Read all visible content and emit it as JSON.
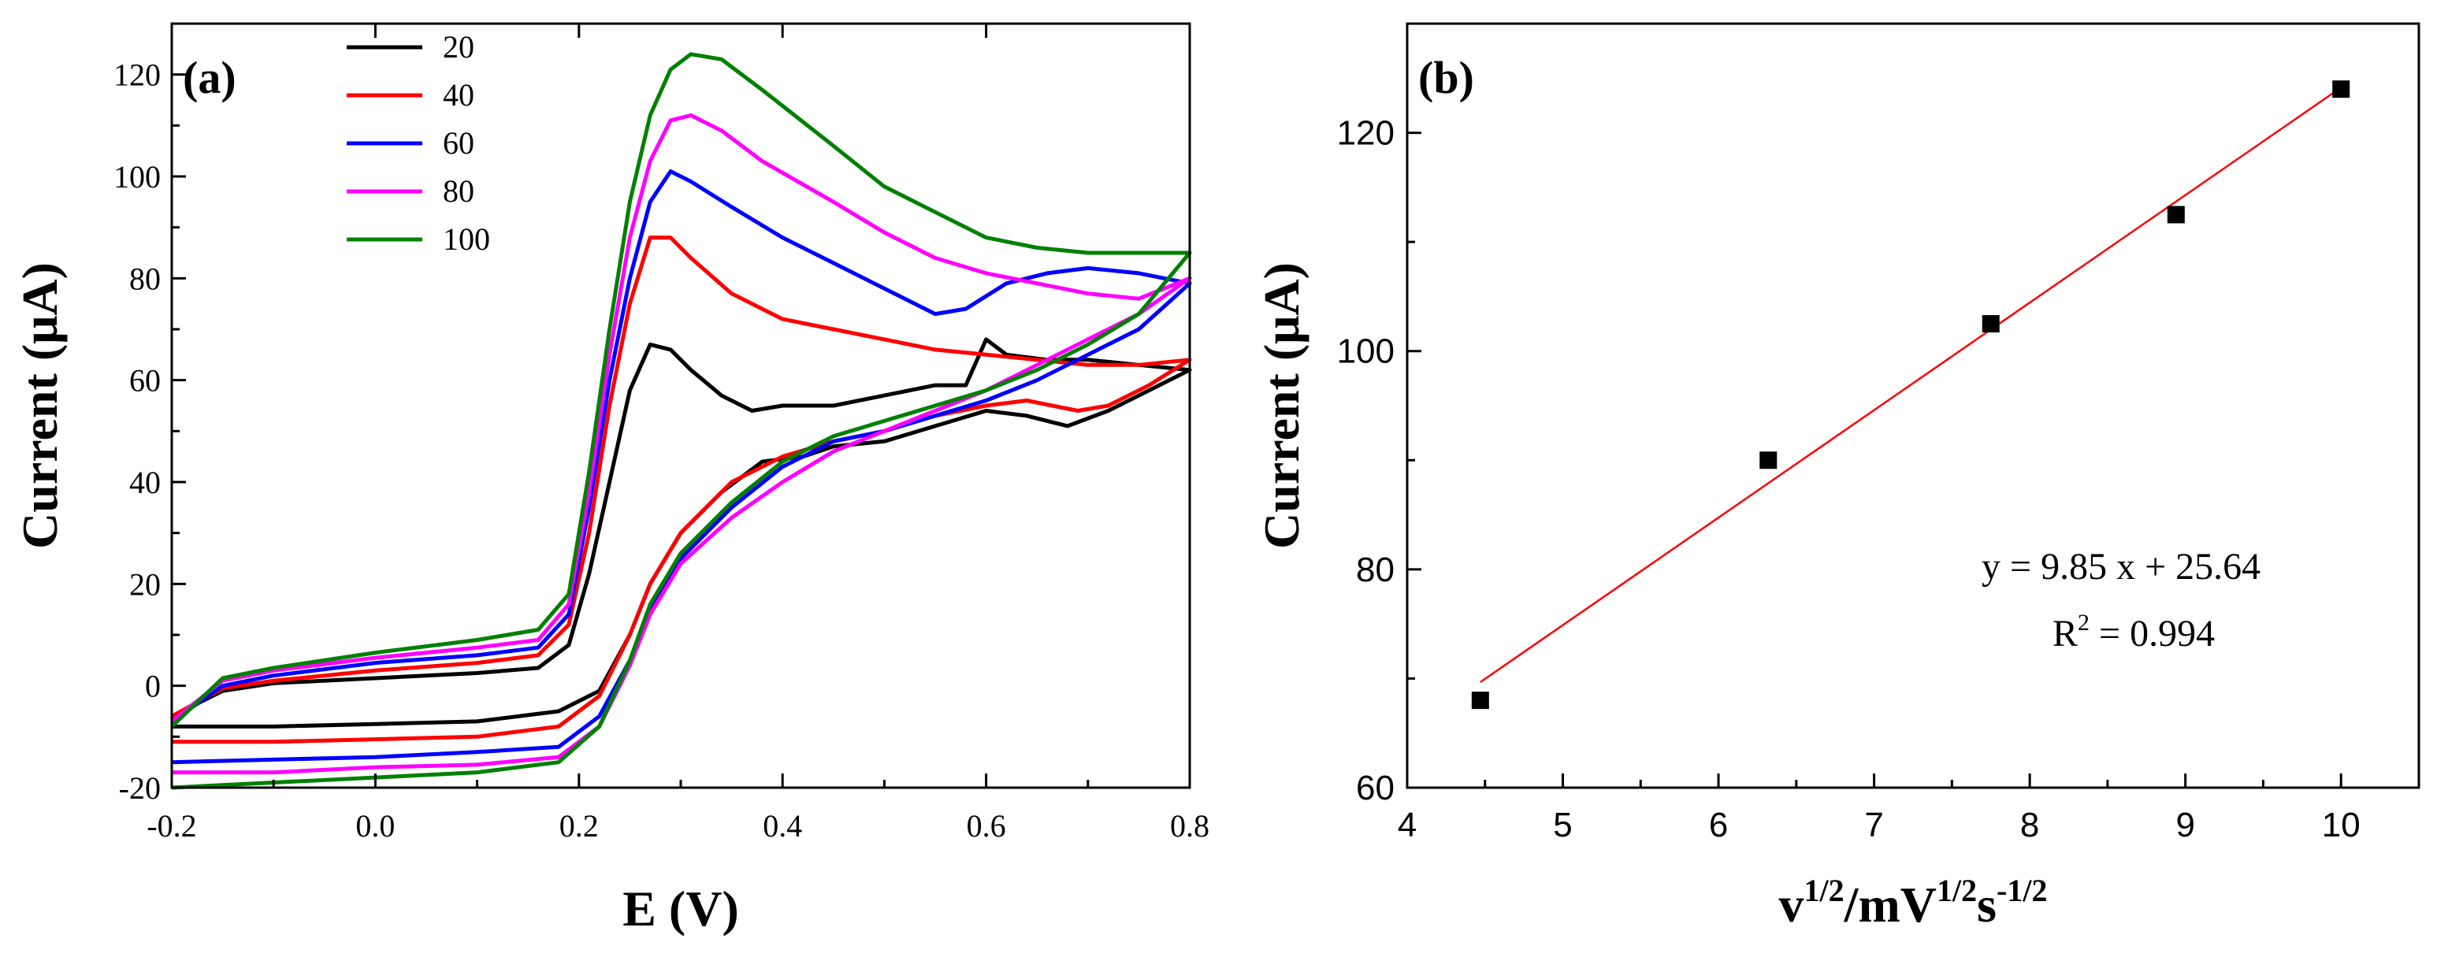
{
  "chart_data": [
    {
      "panel_label": "(a)",
      "type": "line",
      "xlabel": "E (V)",
      "ylabel": "Current (μA)",
      "xlim": [
        -0.2,
        0.8
      ],
      "ylim": [
        -20,
        130
      ],
      "xticks": [
        -0.2,
        0.0,
        0.2,
        0.4,
        0.6,
        0.8
      ],
      "xtick_labels": [
        "-0.2",
        "0.0",
        "0.2",
        "0.4",
        "0.6",
        "0.8"
      ],
      "yticks": [
        -20,
        0,
        20,
        40,
        60,
        80,
        100,
        120
      ],
      "ytick_labels": [
        "-20",
        "0",
        "20",
        "40",
        "60",
        "80",
        "100",
        "120"
      ],
      "legend_position": "top-left",
      "series": [
        {
          "name": "20",
          "color": "#000000",
          "forward": [
            [
              -0.2,
              -6
            ],
            [
              -0.15,
              -1
            ],
            [
              -0.1,
              0.5
            ],
            [
              0.0,
              1.5
            ],
            [
              0.1,
              2.5
            ],
            [
              0.16,
              3.5
            ],
            [
              0.19,
              8
            ],
            [
              0.21,
              22
            ],
            [
              0.23,
              40
            ],
            [
              0.25,
              58
            ],
            [
              0.27,
              67
            ],
            [
              0.29,
              66
            ],
            [
              0.31,
              62
            ],
            [
              0.34,
              57
            ],
            [
              0.37,
              54
            ],
            [
              0.4,
              55
            ],
            [
              0.45,
              55
            ],
            [
              0.5,
              57
            ],
            [
              0.55,
              59
            ],
            [
              0.58,
              59
            ],
            [
              0.6,
              68
            ],
            [
              0.62,
              65
            ],
            [
              0.66,
              64
            ],
            [
              0.7,
              64
            ],
            [
              0.75,
              63
            ],
            [
              0.8,
              62
            ]
          ],
          "reverse": [
            [
              0.8,
              62
            ],
            [
              0.76,
              58
            ],
            [
              0.72,
              54
            ],
            [
              0.68,
              51
            ],
            [
              0.64,
              53
            ],
            [
              0.6,
              54
            ],
            [
              0.55,
              51
            ],
            [
              0.5,
              48
            ],
            [
              0.45,
              47
            ],
            [
              0.42,
              45
            ],
            [
              0.38,
              44
            ],
            [
              0.34,
              38
            ],
            [
              0.3,
              30
            ],
            [
              0.27,
              20
            ],
            [
              0.25,
              10
            ],
            [
              0.22,
              -1
            ],
            [
              0.18,
              -5
            ],
            [
              0.1,
              -7
            ],
            [
              0.0,
              -7.5
            ],
            [
              -0.1,
              -8
            ],
            [
              -0.2,
              -8
            ]
          ]
        },
        {
          "name": "40",
          "color": "#ff0000",
          "forward": [
            [
              -0.2,
              -6
            ],
            [
              -0.15,
              -0.5
            ],
            [
              -0.1,
              1
            ],
            [
              0.0,
              3
            ],
            [
              0.1,
              4.5
            ],
            [
              0.16,
              6
            ],
            [
              0.19,
              12
            ],
            [
              0.21,
              30
            ],
            [
              0.23,
              55
            ],
            [
              0.25,
              75
            ],
            [
              0.27,
              88
            ],
            [
              0.29,
              88
            ],
            [
              0.31,
              84
            ],
            [
              0.35,
              77
            ],
            [
              0.4,
              72
            ],
            [
              0.45,
              70
            ],
            [
              0.5,
              68
            ],
            [
              0.55,
              66
            ],
            [
              0.6,
              65
            ],
            [
              0.65,
              64
            ],
            [
              0.7,
              63
            ],
            [
              0.75,
              63
            ],
            [
              0.8,
              64
            ]
          ],
          "reverse": [
            [
              0.8,
              64
            ],
            [
              0.76,
              59
            ],
            [
              0.72,
              55
            ],
            [
              0.69,
              54
            ],
            [
              0.64,
              56
            ],
            [
              0.6,
              55
            ],
            [
              0.55,
              53
            ],
            [
              0.5,
              50
            ],
            [
              0.45,
              48
            ],
            [
              0.4,
              45
            ],
            [
              0.35,
              40
            ],
            [
              0.3,
              30
            ],
            [
              0.27,
              20
            ],
            [
              0.25,
              10
            ],
            [
              0.22,
              -2
            ],
            [
              0.18,
              -8
            ],
            [
              0.1,
              -10
            ],
            [
              0.0,
              -10.5
            ],
            [
              -0.1,
              -11
            ],
            [
              -0.2,
              -11
            ]
          ]
        },
        {
          "name": "60",
          "color": "#0000ff",
          "forward": [
            [
              -0.2,
              -7
            ],
            [
              -0.15,
              0
            ],
            [
              -0.1,
              2
            ],
            [
              0.0,
              4.5
            ],
            [
              0.1,
              6
            ],
            [
              0.16,
              7.5
            ],
            [
              0.19,
              14
            ],
            [
              0.21,
              35
            ],
            [
              0.23,
              60
            ],
            [
              0.25,
              80
            ],
            [
              0.27,
              95
            ],
            [
              0.29,
              101
            ],
            [
              0.31,
              99
            ],
            [
              0.35,
              94
            ],
            [
              0.4,
              88
            ],
            [
              0.45,
              83
            ],
            [
              0.5,
              78
            ],
            [
              0.55,
              73
            ],
            [
              0.58,
              74
            ],
            [
              0.62,
              79
            ],
            [
              0.66,
              81
            ],
            [
              0.7,
              82
            ],
            [
              0.75,
              81
            ],
            [
              0.8,
              79
            ]
          ],
          "reverse": [
            [
              0.8,
              79
            ],
            [
              0.75,
              70
            ],
            [
              0.7,
              65
            ],
            [
              0.65,
              60
            ],
            [
              0.6,
              56
            ],
            [
              0.55,
              53
            ],
            [
              0.5,
              50
            ],
            [
              0.45,
              48
            ],
            [
              0.4,
              43
            ],
            [
              0.35,
              35
            ],
            [
              0.3,
              25
            ],
            [
              0.27,
              15
            ],
            [
              0.25,
              5
            ],
            [
              0.22,
              -6
            ],
            [
              0.18,
              -12
            ],
            [
              0.1,
              -13
            ],
            [
              0.0,
              -14
            ],
            [
              -0.1,
              -14.5
            ],
            [
              -0.2,
              -15
            ]
          ]
        },
        {
          "name": "80",
          "color": "#ff00ff",
          "forward": [
            [
              -0.2,
              -7
            ],
            [
              -0.15,
              1
            ],
            [
              -0.1,
              3
            ],
            [
              0.0,
              5.5
            ],
            [
              0.1,
              7.5
            ],
            [
              0.16,
              9
            ],
            [
              0.19,
              16
            ],
            [
              0.21,
              38
            ],
            [
              0.23,
              65
            ],
            [
              0.25,
              88
            ],
            [
              0.27,
              103
            ],
            [
              0.29,
              111
            ],
            [
              0.31,
              112
            ],
            [
              0.34,
              109
            ],
            [
              0.38,
              103
            ],
            [
              0.45,
              95
            ],
            [
              0.5,
              89
            ],
            [
              0.55,
              84
            ],
            [
              0.6,
              81
            ],
            [
              0.65,
              79
            ],
            [
              0.7,
              77
            ],
            [
              0.75,
              76
            ],
            [
              0.8,
              80
            ]
          ],
          "reverse": [
            [
              0.8,
              80
            ],
            [
              0.75,
              73
            ],
            [
              0.7,
              68
            ],
            [
              0.65,
              63
            ],
            [
              0.6,
              58
            ],
            [
              0.55,
              54
            ],
            [
              0.5,
              50
            ],
            [
              0.45,
              46
            ],
            [
              0.4,
              40
            ],
            [
              0.35,
              33
            ],
            [
              0.3,
              24
            ],
            [
              0.27,
              14
            ],
            [
              0.25,
              4
            ],
            [
              0.22,
              -8
            ],
            [
              0.18,
              -14
            ],
            [
              0.1,
              -15.5
            ],
            [
              0.0,
              -16
            ],
            [
              -0.1,
              -17
            ],
            [
              -0.2,
              -17
            ]
          ]
        },
        {
          "name": "100",
          "color": "#008000",
          "forward": [
            [
              -0.2,
              -8
            ],
            [
              -0.15,
              1.5
            ],
            [
              -0.1,
              3.5
            ],
            [
              0.0,
              6.5
            ],
            [
              0.1,
              9
            ],
            [
              0.16,
              11
            ],
            [
              0.19,
              18
            ],
            [
              0.21,
              42
            ],
            [
              0.23,
              70
            ],
            [
              0.25,
              95
            ],
            [
              0.27,
              112
            ],
            [
              0.29,
              121
            ],
            [
              0.31,
              124
            ],
            [
              0.34,
              123
            ],
            [
              0.38,
              117
            ],
            [
              0.45,
              106
            ],
            [
              0.5,
              98
            ],
            [
              0.55,
              93
            ],
            [
              0.6,
              88
            ],
            [
              0.65,
              86
            ],
            [
              0.7,
              85
            ],
            [
              0.75,
              85
            ],
            [
              0.8,
              85
            ]
          ],
          "reverse": [
            [
              0.8,
              85
            ],
            [
              0.75,
              73
            ],
            [
              0.7,
              67
            ],
            [
              0.65,
              62
            ],
            [
              0.6,
              58
            ],
            [
              0.55,
              55
            ],
            [
              0.5,
              52
            ],
            [
              0.45,
              49
            ],
            [
              0.4,
              44
            ],
            [
              0.35,
              36
            ],
            [
              0.3,
              26
            ],
            [
              0.27,
              16
            ],
            [
              0.25,
              5
            ],
            [
              0.22,
              -8
            ],
            [
              0.18,
              -15
            ],
            [
              0.1,
              -17
            ],
            [
              0.0,
              -18
            ],
            [
              -0.1,
              -19
            ],
            [
              -0.2,
              -20
            ]
          ]
        }
      ]
    },
    {
      "panel_label": "(b)",
      "type": "scatter",
      "xlabel_base": "v",
      "xlabel_sup1": "1/2",
      "xlabel_mid": "/mV",
      "xlabel_sup2": "1/2",
      "xlabel_mid2": "s",
      "xlabel_sup3": "-1/2",
      "ylabel": "Current (μA)",
      "xlim": [
        4,
        10.5
      ],
      "ylim": [
        60,
        130
      ],
      "xticks": [
        4,
        5,
        6,
        7,
        8,
        9,
        10
      ],
      "xtick_labels": [
        "4",
        "5",
        "6",
        "7",
        "8",
        "9",
        "10"
      ],
      "yticks": [
        60,
        80,
        100,
        120
      ],
      "ytick_labels": [
        "60",
        "80",
        "100",
        "120"
      ],
      "points": [
        [
          4.47,
          68
        ],
        [
          6.32,
          90
        ],
        [
          7.75,
          102.5
        ],
        [
          8.94,
          112.5
        ],
        [
          10.0,
          124
        ]
      ],
      "fit": {
        "slope": 9.85,
        "intercept": 25.64,
        "x_range": [
          4.47,
          10.0
        ],
        "color": "#ff0000"
      },
      "equation": "y = 9.85 x + 25.64",
      "r2_base": "R",
      "r2_sup": "2",
      "r2_value": " = 0.994"
    }
  ]
}
